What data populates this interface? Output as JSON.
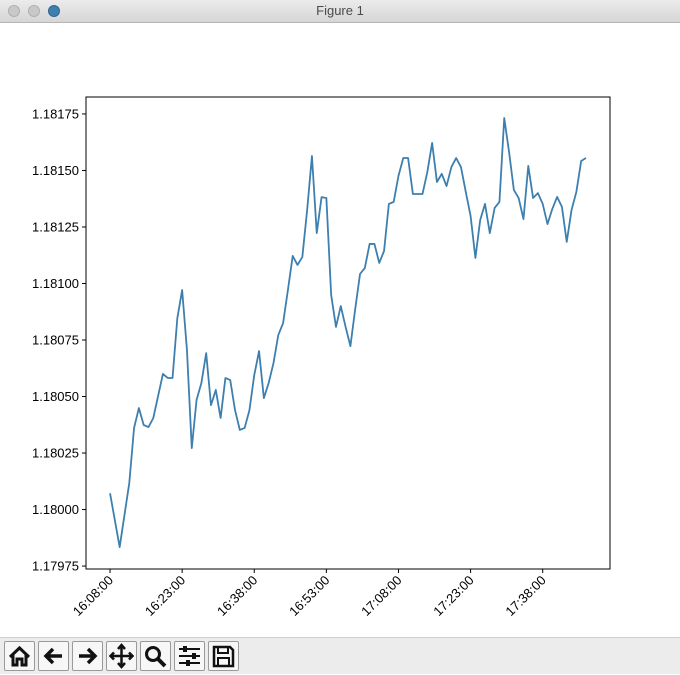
{
  "window": {
    "title": "Figure 1"
  },
  "chart_data": {
    "type": "line",
    "x": [
      "16:08:00",
      "16:10:00",
      "16:12:00",
      "16:13:00",
      "16:14:00",
      "16:15:00",
      "16:16:00",
      "16:17:00",
      "16:19:00",
      "16:20:00",
      "16:21:00",
      "16:22:00",
      "16:23:00",
      "16:24:00",
      "16:25:00",
      "16:26:00",
      "16:27:00",
      "16:28:00",
      "16:29:00",
      "16:30:00",
      "16:31:00",
      "16:32:00",
      "16:33:00",
      "16:34:00",
      "16:35:00",
      "16:36:00",
      "16:37:00",
      "16:38:00",
      "16:39:00",
      "16:40:00",
      "16:41:00",
      "16:42:00",
      "16:43:00",
      "16:44:00",
      "16:45:00",
      "16:46:00",
      "16:47:00",
      "16:48:00",
      "16:49:00",
      "16:50:00",
      "16:51:00",
      "16:52:00",
      "16:53:00",
      "16:54:00",
      "16:55:00",
      "16:56:00",
      "16:57:00",
      "16:58:00",
      "16:59:00",
      "17:00:00",
      "17:01:00",
      "17:02:00",
      "17:03:00",
      "17:04:00",
      "17:05:00",
      "17:06:00",
      "17:07:00",
      "17:08:00",
      "17:09:00",
      "17:10:00",
      "17:11:00",
      "17:12:00",
      "17:13:00",
      "17:14:00",
      "17:15:00",
      "17:16:00",
      "17:17:00",
      "17:18:00",
      "17:19:00",
      "17:20:00",
      "17:21:00",
      "17:22:00",
      "17:23:00",
      "17:24:00",
      "17:25:00",
      "17:26:00",
      "17:27:00",
      "17:28:00",
      "17:29:00",
      "17:30:00",
      "17:31:00",
      "17:32:00",
      "17:33:00",
      "17:34:00",
      "17:35:00",
      "17:36:00",
      "17:37:00",
      "17:38:00",
      "17:39:00",
      "17:40:00",
      "17:41:00",
      "17:42:00",
      "17:43:00",
      "17:44:00",
      "17:45:00",
      "17:46:00",
      "17:47:00"
    ],
    "series": [
      {
        "color": "#3d7fae",
        "values": [
          1.180072,
          1.179834,
          1.180117,
          1.180361,
          1.180449,
          1.180374,
          1.180365,
          1.180405,
          1.1806,
          1.180582,
          1.180582,
          1.180847,
          1.180971,
          1.180706,
          1.180272,
          1.180485,
          1.18056,
          1.180692,
          1.180462,
          1.180529,
          1.180405,
          1.180582,
          1.180573,
          1.18044,
          1.180352,
          1.180361,
          1.18044,
          1.180595,
          1.180701,
          1.180493,
          1.18056,
          1.180648,
          1.180772,
          1.180825,
          1.180971,
          1.181122,
          1.181082,
          1.181117,
          1.181325,
          1.181564,
          1.181223,
          1.181382,
          1.181378,
          1.180949,
          1.180808,
          1.1809,
          1.180808,
          1.180723,
          1.180887,
          1.181042,
          1.181069,
          1.181175,
          1.181175,
          1.181091,
          1.181144,
          1.181352,
          1.181361,
          1.181476,
          1.181555,
          1.181555,
          1.181396,
          1.181396,
          1.181396,
          1.181493,
          1.181622,
          1.181449,
          1.181485,
          1.181431,
          1.181515,
          1.181555,
          1.181515,
          1.181405,
          1.181299,
          1.181113,
          1.181281,
          1.181352,
          1.181223,
          1.181334,
          1.181361,
          1.181732,
          1.181582,
          1.181414,
          1.181378,
          1.181285,
          1.18152,
          1.181378,
          1.1814,
          1.181352,
          1.181263,
          1.18133,
          1.181383,
          1.181339,
          1.181184,
          1.181325,
          1.181405,
          1.181542,
          1.181555
        ]
      }
    ],
    "xlim": [
      "16:03:00",
      "17:52:00"
    ],
    "xticks": [
      "16:08:00",
      "16:23:00",
      "16:38:00",
      "16:53:00",
      "17:08:00",
      "17:23:00",
      "17:38:00"
    ],
    "ylim": [
      1.179737,
      1.181825
    ],
    "yticks": [
      1.17975,
      {
        "value": 1.18,
        "label": "1.18000"
      },
      1.18025,
      {
        "value": 1.1805,
        "label": "1.18050"
      },
      1.18075,
      {
        "value": 1.181,
        "label": "1.18100"
      },
      1.18125,
      {
        "value": 1.1815,
        "label": "1.18150"
      },
      1.18175
    ]
  }
}
